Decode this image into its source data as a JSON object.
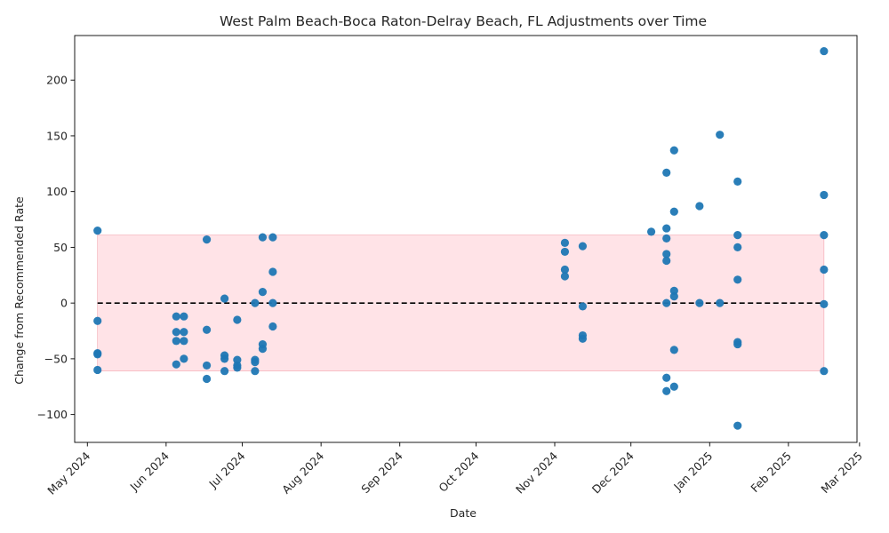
{
  "chart_data": {
    "type": "scatter",
    "title": "West Palm Beach-Boca Raton-Delray Beach, FL Adjustments over Time",
    "xlabel": "Date",
    "ylabel": "Change from Recommended Rate",
    "xlim": [
      "2024-04-26",
      "2025-02-28"
    ],
    "ylim": [
      -125,
      240
    ],
    "x_ticks": [
      {
        "date": "2024-05-01",
        "label": "May 2024"
      },
      {
        "date": "2024-06-01",
        "label": "Jun 2024"
      },
      {
        "date": "2024-07-01",
        "label": "Jul 2024"
      },
      {
        "date": "2024-08-01",
        "label": "Aug 2024"
      },
      {
        "date": "2024-09-01",
        "label": "Sep 2024"
      },
      {
        "date": "2024-10-01",
        "label": "Oct 2024"
      },
      {
        "date": "2024-11-01",
        "label": "Nov 2024"
      },
      {
        "date": "2024-12-01",
        "label": "Dec 2024"
      },
      {
        "date": "2025-01-01",
        "label": "Jan 2025"
      },
      {
        "date": "2025-02-01",
        "label": "Feb 2025"
      },
      {
        "date": "2025-03-01",
        "label": "Mar 2025"
      }
    ],
    "y_ticks": [
      -100,
      -50,
      0,
      50,
      100,
      150,
      200
    ],
    "band": {
      "lower": -61,
      "upper": 61,
      "x_start": "2024-05-05",
      "x_end": "2025-02-15",
      "color": "#ffc0c8"
    },
    "reference_line": {
      "y": 0,
      "style": "dashed",
      "color": "#000000",
      "x_start": "2024-05-05",
      "x_end": "2025-02-15"
    },
    "point_color": "#1f77b4",
    "points": [
      {
        "x": "2024-05-05",
        "y": 65
      },
      {
        "x": "2024-05-05",
        "y": -16
      },
      {
        "x": "2024-05-05",
        "y": -45
      },
      {
        "x": "2024-05-05",
        "y": -46
      },
      {
        "x": "2024-05-05",
        "y": -60
      },
      {
        "x": "2024-06-05",
        "y": -12
      },
      {
        "x": "2024-06-05",
        "y": -26
      },
      {
        "x": "2024-06-05",
        "y": -34
      },
      {
        "x": "2024-06-05",
        "y": -55
      },
      {
        "x": "2024-06-08",
        "y": -12
      },
      {
        "x": "2024-06-08",
        "y": -26
      },
      {
        "x": "2024-06-08",
        "y": -34
      },
      {
        "x": "2024-06-08",
        "y": -50
      },
      {
        "x": "2024-06-17",
        "y": 57
      },
      {
        "x": "2024-06-17",
        "y": -24
      },
      {
        "x": "2024-06-17",
        "y": -56
      },
      {
        "x": "2024-06-17",
        "y": -68
      },
      {
        "x": "2024-06-24",
        "y": 4
      },
      {
        "x": "2024-06-24",
        "y": -47
      },
      {
        "x": "2024-06-24",
        "y": -50
      },
      {
        "x": "2024-06-24",
        "y": -61
      },
      {
        "x": "2024-06-29",
        "y": -15
      },
      {
        "x": "2024-06-29",
        "y": -51
      },
      {
        "x": "2024-06-29",
        "y": -56
      },
      {
        "x": "2024-06-29",
        "y": -58
      },
      {
        "x": "2024-07-06",
        "y": 0
      },
      {
        "x": "2024-07-06",
        "y": -51
      },
      {
        "x": "2024-07-06",
        "y": -53
      },
      {
        "x": "2024-07-06",
        "y": -61
      },
      {
        "x": "2024-07-09",
        "y": 59
      },
      {
        "x": "2024-07-09",
        "y": 10
      },
      {
        "x": "2024-07-09",
        "y": -37
      },
      {
        "x": "2024-07-09",
        "y": -41
      },
      {
        "x": "2024-07-13",
        "y": 59
      },
      {
        "x": "2024-07-13",
        "y": 28
      },
      {
        "x": "2024-07-13",
        "y": 0
      },
      {
        "x": "2024-07-13",
        "y": -21
      },
      {
        "x": "2024-11-05",
        "y": 54
      },
      {
        "x": "2024-11-05",
        "y": 46
      },
      {
        "x": "2024-11-05",
        "y": 30
      },
      {
        "x": "2024-11-05",
        "y": 24
      },
      {
        "x": "2024-11-12",
        "y": 51
      },
      {
        "x": "2024-11-12",
        "y": -3
      },
      {
        "x": "2024-11-12",
        "y": -29
      },
      {
        "x": "2024-11-12",
        "y": -32
      },
      {
        "x": "2024-12-09",
        "y": 64
      },
      {
        "x": "2024-12-15",
        "y": 117
      },
      {
        "x": "2024-12-15",
        "y": 67
      },
      {
        "x": "2024-12-15",
        "y": 58
      },
      {
        "x": "2024-12-15",
        "y": 44
      },
      {
        "x": "2024-12-15",
        "y": 38
      },
      {
        "x": "2024-12-15",
        "y": 0
      },
      {
        "x": "2024-12-15",
        "y": -67
      },
      {
        "x": "2024-12-15",
        "y": -79
      },
      {
        "x": "2024-12-18",
        "y": 137
      },
      {
        "x": "2024-12-18",
        "y": 82
      },
      {
        "x": "2024-12-18",
        "y": 11
      },
      {
        "x": "2024-12-18",
        "y": 6
      },
      {
        "x": "2024-12-18",
        "y": -42
      },
      {
        "x": "2024-12-18",
        "y": -75
      },
      {
        "x": "2024-12-28",
        "y": 87
      },
      {
        "x": "2024-12-28",
        "y": 0
      },
      {
        "x": "2025-01-05",
        "y": 151
      },
      {
        "x": "2025-01-05",
        "y": 0
      },
      {
        "x": "2025-01-12",
        "y": 109
      },
      {
        "x": "2025-01-12",
        "y": 61
      },
      {
        "x": "2025-01-12",
        "y": 50
      },
      {
        "x": "2025-01-12",
        "y": 21
      },
      {
        "x": "2025-01-12",
        "y": -35
      },
      {
        "x": "2025-01-12",
        "y": -37
      },
      {
        "x": "2025-01-12",
        "y": -110
      },
      {
        "x": "2025-02-15",
        "y": 226
      },
      {
        "x": "2025-02-15",
        "y": 97
      },
      {
        "x": "2025-02-15",
        "y": 61
      },
      {
        "x": "2025-02-15",
        "y": 30
      },
      {
        "x": "2025-02-15",
        "y": -1
      },
      {
        "x": "2025-02-15",
        "y": -61
      }
    ]
  }
}
